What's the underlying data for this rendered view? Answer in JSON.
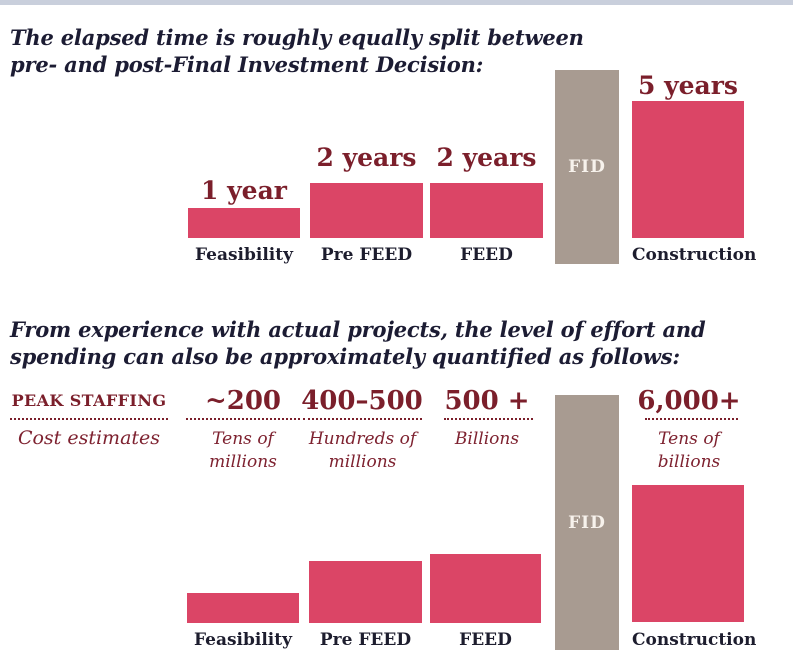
{
  "colors": {
    "bar_pink": "#db4566",
    "bar_gray": "#a89b91",
    "maroon_text": "#7b1f2b",
    "heading_ink": "#1c1c33",
    "top_strip": "#c9cfdc"
  },
  "top_chart": {
    "heading_line1": "The elapsed time is roughly equally split between",
    "heading_line2": "pre- and post-Final Investment Decision:",
    "fid_label": "FID",
    "bars": [
      {
        "phase": "Feasibility",
        "duration": "1 year"
      },
      {
        "phase": "Pre FEED",
        "duration": "2 years"
      },
      {
        "phase": "FEED",
        "duration": "2 years"
      },
      {
        "phase": "Construction",
        "duration": "5 years"
      }
    ]
  },
  "bottom_chart": {
    "heading_line1": "From experience with actual projects, the level of effort and",
    "heading_line2": "spending can also be approximately quantified as follows:",
    "staffing_row_label": "PEAK STAFFING",
    "cost_row_label": "Cost estimates",
    "fid_label": "FID",
    "columns": [
      {
        "phase": "Feasibility",
        "staffing": "~200",
        "cost_line1": "Tens of",
        "cost_line2": "millions"
      },
      {
        "phase": "Pre FEED",
        "staffing": "400–500",
        "cost_line1": "Hundreds of",
        "cost_line2": "millions"
      },
      {
        "phase": "FEED",
        "staffing": "500 +",
        "cost_line1": "Billions",
        "cost_line2": ""
      },
      {
        "phase": "Construction",
        "staffing": "6,000+",
        "cost_line1": "Tens of",
        "cost_line2": "billions"
      }
    ]
  },
  "chart_data": [
    {
      "type": "bar",
      "title": "The elapsed time is roughly equally split between pre- and post-Final Investment Decision:",
      "categories": [
        "Feasibility",
        "Pre FEED",
        "FEED",
        "FID",
        "Construction"
      ],
      "values_years": [
        1,
        2,
        2,
        null,
        5
      ],
      "bar_labels": [
        "1 year",
        "2 years",
        "2 years",
        "FID",
        "5 years"
      ],
      "notes": "FID is a gray divider column between pre-FID and post-FID phases; other bars are pink and sized proportionally to years",
      "legend": "none",
      "grid": "off"
    },
    {
      "type": "bar",
      "title": "From experience with actual projects, the level of effort and spending can also be approximately quantified as follows:",
      "categories": [
        "Feasibility",
        "Pre FEED",
        "FEED",
        "FID",
        "Construction"
      ],
      "series": [
        {
          "name": "PEAK STAFFING",
          "values": [
            "~200",
            "400–500",
            "500 +",
            null,
            "6,000+"
          ]
        },
        {
          "name": "Cost estimates",
          "values": [
            "Tens of millions",
            "Hundreds of millions",
            "Billions",
            null,
            "Tens of billions"
          ]
        }
      ],
      "relative_bar_heights": [
        1,
        2.1,
        2.3,
        null,
        4.6
      ],
      "notes": "Bars are unlabeled qualitative effort levels; FID is a gray divider column",
      "legend": "none",
      "grid": "off"
    }
  ]
}
